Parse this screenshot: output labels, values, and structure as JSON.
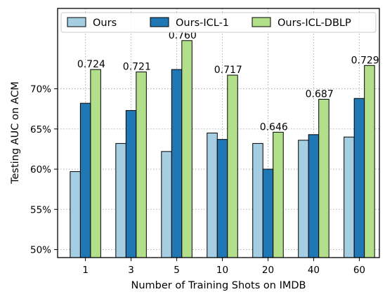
{
  "chart_data": {
    "type": "bar",
    "title": "",
    "xlabel": "Number of Training Shots on IMDB",
    "ylabel": "Testing AUC on ACM",
    "categories": [
      "1",
      "3",
      "5",
      "10",
      "20",
      "40",
      "60"
    ],
    "series": [
      {
        "name": "Ours",
        "color": "#a6cee3",
        "values": [
          0.597,
          0.632,
          0.622,
          0.645,
          0.632,
          0.636,
          0.64
        ]
      },
      {
        "name": "Ours-ICL-1",
        "color": "#1f78b4",
        "values": [
          0.682,
          0.673,
          0.724,
          0.637,
          0.6,
          0.643,
          0.688
        ]
      },
      {
        "name": "Ours-ICL-DBLP",
        "color": "#b2df8a",
        "values": [
          0.724,
          0.721,
          0.76,
          0.717,
          0.646,
          0.687,
          0.729
        ]
      }
    ],
    "data_labels": [
      "0.724",
      "0.721",
      "0.760",
      "0.717",
      "0.646",
      "0.687",
      "0.729"
    ],
    "yticks": [
      0.5,
      0.55,
      0.6,
      0.65,
      0.7
    ],
    "ytick_labels": [
      "50%",
      "55%",
      "60%",
      "65%",
      "70%"
    ],
    "ylim": [
      0.49,
      0.8
    ],
    "grid": true,
    "legend_position": "top"
  }
}
